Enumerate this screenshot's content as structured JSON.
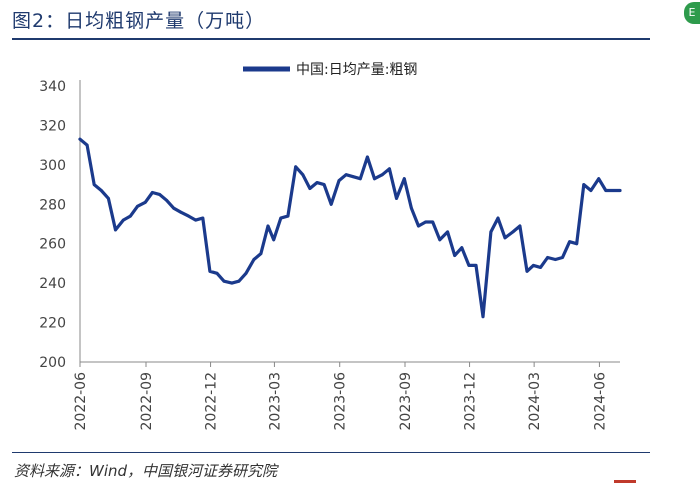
{
  "header": {
    "title": "图2：日均粗钢产量（万吨）",
    "badge": "E"
  },
  "footer": {
    "source": "资料来源：Wind，中国银河证券研究院"
  },
  "colors": {
    "series": "#1b3a8c",
    "axis": "#888888",
    "title": "#1f3a6e"
  },
  "chart_data": {
    "type": "line",
    "title": "",
    "xlabel": "",
    "ylabel": "",
    "ylim": [
      200,
      340
    ],
    "yticks": [
      200,
      220,
      240,
      260,
      280,
      300,
      320,
      340
    ],
    "xticks": [
      "2022-06",
      "2022-09",
      "2022-12",
      "2023-03",
      "2023-06",
      "2023-09",
      "2023-12",
      "2024-03",
      "2024-06"
    ],
    "grid": false,
    "legend_position": "top-center",
    "series": [
      {
        "name": "中国:日均产量:粗钢",
        "color": "#1b3a8c",
        "x": [
          "2022-05-31",
          "2022-06-10",
          "2022-06-20",
          "2022-06-30",
          "2022-07-10",
          "2022-07-20",
          "2022-07-31",
          "2022-08-10",
          "2022-08-20",
          "2022-08-31",
          "2022-09-10",
          "2022-09-20",
          "2022-09-30",
          "2022-10-10",
          "2022-10-20",
          "2022-10-31",
          "2022-11-10",
          "2022-11-20",
          "2022-11-30",
          "2022-12-10",
          "2022-12-20",
          "2022-12-31",
          "2023-01-10",
          "2023-01-20",
          "2023-01-31",
          "2023-02-10",
          "2023-02-20",
          "2023-02-28",
          "2023-03-10",
          "2023-03-20",
          "2023-03-31",
          "2023-04-10",
          "2023-04-20",
          "2023-04-30",
          "2023-05-10",
          "2023-05-20",
          "2023-05-31",
          "2023-06-10",
          "2023-06-20",
          "2023-06-30",
          "2023-07-10",
          "2023-07-20",
          "2023-07-31",
          "2023-08-10",
          "2023-08-20",
          "2023-08-31",
          "2023-09-10",
          "2023-09-20",
          "2023-09-30",
          "2023-10-10",
          "2023-10-20",
          "2023-10-31",
          "2023-11-10",
          "2023-11-20",
          "2023-11-30",
          "2023-12-10",
          "2023-12-20",
          "2023-12-31",
          "2024-01-10",
          "2024-01-20",
          "2024-01-31",
          "2024-02-10",
          "2024-02-20",
          "2024-02-29",
          "2024-03-10",
          "2024-03-20",
          "2024-03-31",
          "2024-04-10",
          "2024-04-20",
          "2024-04-30",
          "2024-05-10",
          "2024-05-20",
          "2024-05-31",
          "2024-06-10",
          "2024-06-20",
          "2024-06-30"
        ],
        "values": [
          313,
          310,
          290,
          287,
          283,
          267,
          272,
          274,
          279,
          281,
          286,
          285,
          282,
          278,
          276,
          274,
          272,
          273,
          246,
          245,
          241,
          240,
          241,
          245,
          252,
          255,
          269,
          262,
          273,
          274,
          299,
          295,
          288,
          291,
          290,
          280,
          292,
          295,
          294,
          293,
          304,
          293,
          295,
          298,
          283,
          293,
          278,
          269,
          271,
          271,
          262,
          266,
          254,
          258,
          249,
          249,
          223,
          266,
          273,
          263,
          266,
          269,
          246,
          249,
          248,
          253,
          252,
          253,
          261,
          260,
          290,
          287,
          293,
          287,
          287,
          287
        ]
      }
    ]
  }
}
